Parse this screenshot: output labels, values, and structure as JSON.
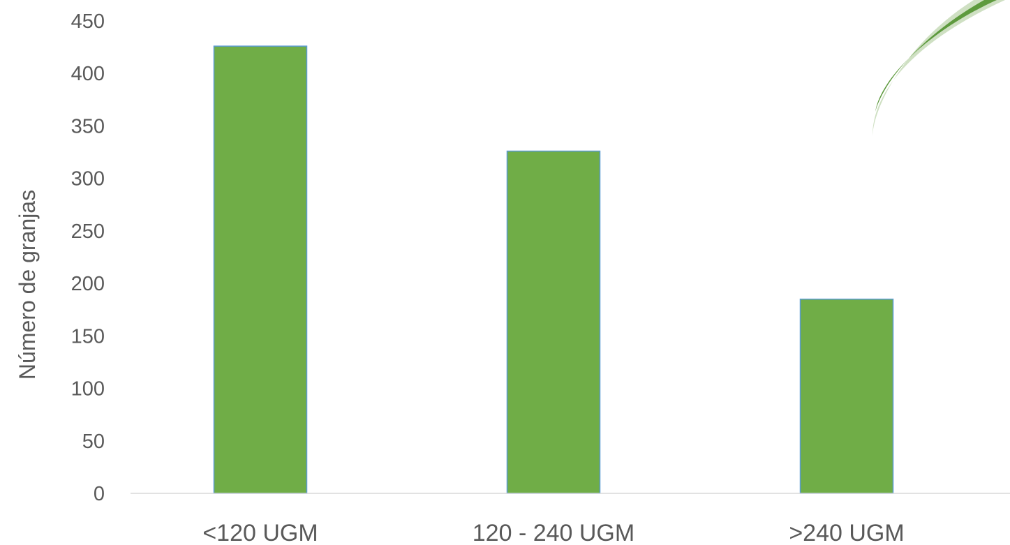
{
  "chart_data": {
    "type": "bar",
    "title": "",
    "xlabel": "",
    "ylabel": "Número de granjas",
    "categories": [
      "<120 UGM",
      "120 - 240 UGM",
      ">240 UGM"
    ],
    "values": [
      426,
      326,
      185
    ],
    "ylim": [
      0,
      450
    ],
    "yticks": [
      "0",
      "50",
      "100",
      "150",
      "200",
      "250",
      "300",
      "350",
      "400",
      "450"
    ],
    "grid": false,
    "legend": "none",
    "colors": {
      "bar_fill": "#70AD47",
      "bar_edge": "#5B9BD5",
      "axis_line": "#D9D9D9",
      "text": "#595959",
      "leaf_dark": "#5E9A3E",
      "leaf_light": "#CFE0C3"
    }
  },
  "decoration": {
    "icon": "leaf-logo-icon"
  }
}
